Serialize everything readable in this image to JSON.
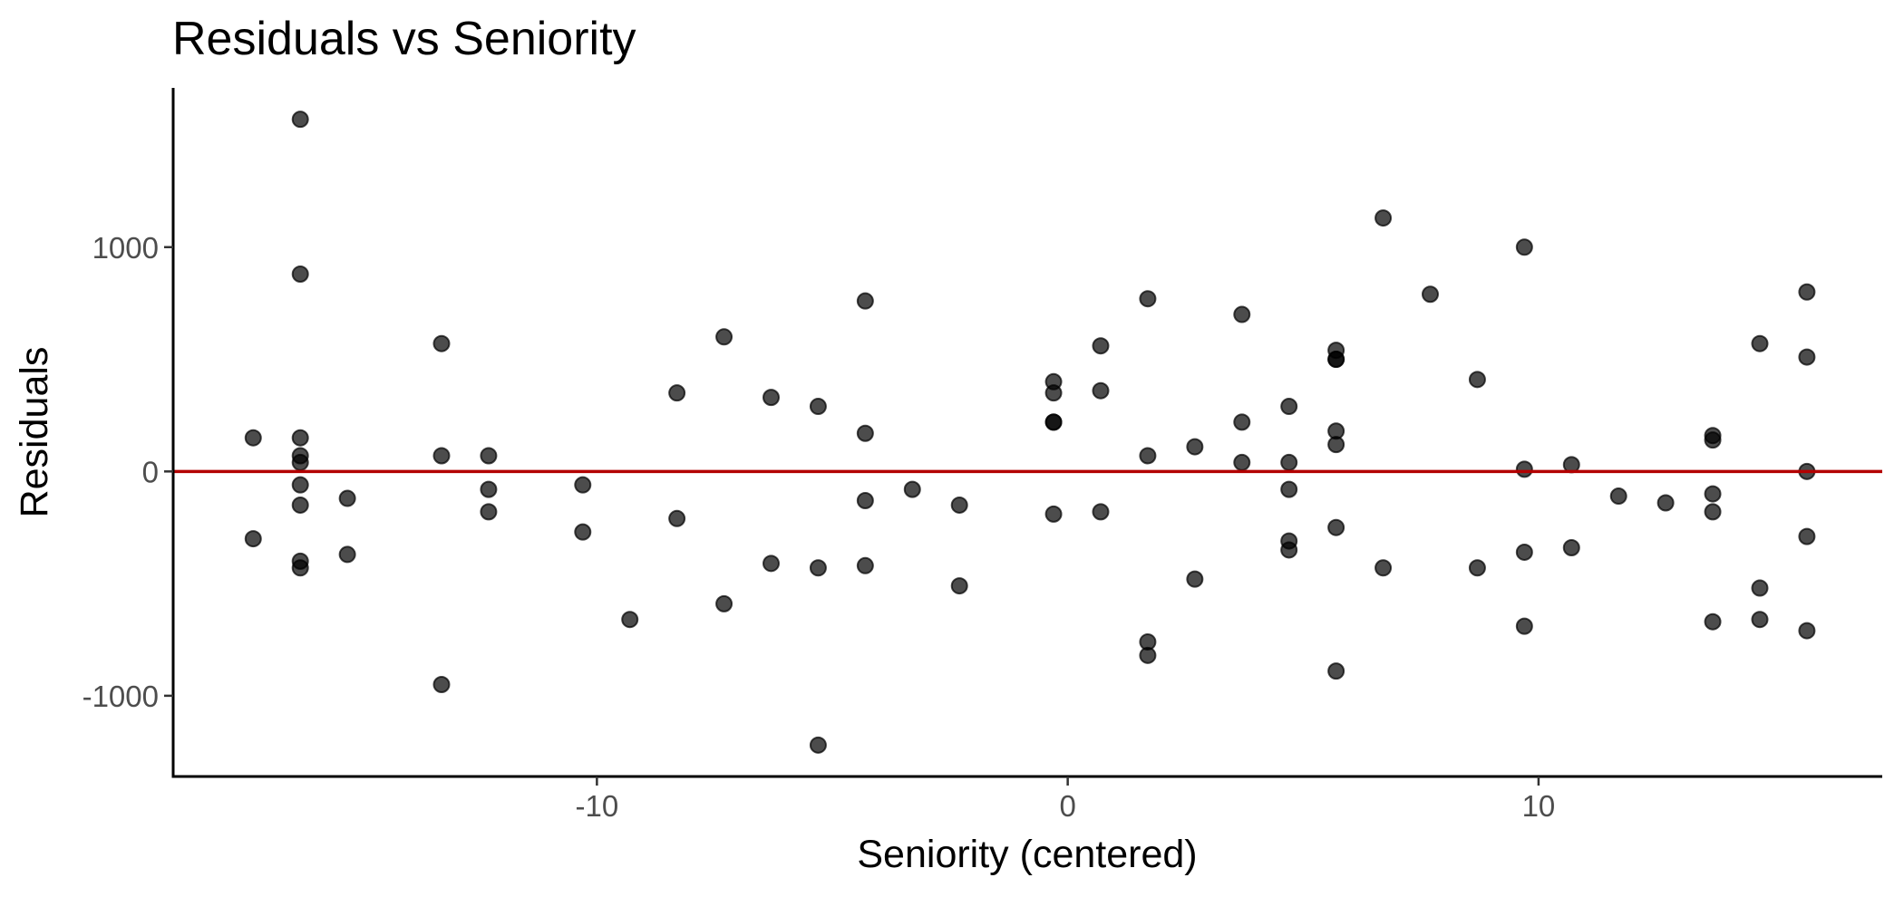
{
  "chart_data": {
    "type": "scatter",
    "title": "Residuals vs Seniority",
    "xlabel": "Seniority (centered)",
    "ylabel": "Residuals",
    "xlim": [
      -19,
      17.3
    ],
    "ylim": [
      -1360,
      1710
    ],
    "x_ticks": [
      -10,
      0,
      10
    ],
    "x_tick_labels": [
      "-10",
      "0",
      "10"
    ],
    "y_ticks": [
      -1000,
      0,
      1000
    ],
    "y_tick_labels": [
      "-1000",
      "0",
      "1000"
    ],
    "grid": false,
    "legend": "none",
    "point_color": "#000000",
    "point_opacity": 0.7,
    "reference_line": {
      "y": 0,
      "color": "#b30000"
    },
    "points": [
      {
        "x": -17.3,
        "y": 150
      },
      {
        "x": -17.3,
        "y": -300
      },
      {
        "x": -16.3,
        "y": 1570
      },
      {
        "x": -16.3,
        "y": 880
      },
      {
        "x": -16.3,
        "y": 150
      },
      {
        "x": -16.3,
        "y": 70
      },
      {
        "x": -16.3,
        "y": 40
      },
      {
        "x": -16.3,
        "y": -60
      },
      {
        "x": -16.3,
        "y": -150
      },
      {
        "x": -16.3,
        "y": -400
      },
      {
        "x": -16.3,
        "y": -430
      },
      {
        "x": -15.3,
        "y": -120
      },
      {
        "x": -15.3,
        "y": -370
      },
      {
        "x": -13.3,
        "y": 570
      },
      {
        "x": -13.3,
        "y": 70
      },
      {
        "x": -13.3,
        "y": -950
      },
      {
        "x": -12.3,
        "y": 70
      },
      {
        "x": -12.3,
        "y": -80
      },
      {
        "x": -12.3,
        "y": -180
      },
      {
        "x": -10.3,
        "y": -60
      },
      {
        "x": -10.3,
        "y": -270
      },
      {
        "x": -9.3,
        "y": -660
      },
      {
        "x": -8.3,
        "y": 350
      },
      {
        "x": -8.3,
        "y": -210
      },
      {
        "x": -7.3,
        "y": 600
      },
      {
        "x": -7.3,
        "y": -590
      },
      {
        "x": -6.3,
        "y": 330
      },
      {
        "x": -6.3,
        "y": -410
      },
      {
        "x": -5.3,
        "y": 290
      },
      {
        "x": -5.3,
        "y": -430
      },
      {
        "x": -5.3,
        "y": -1220
      },
      {
        "x": -4.3,
        "y": 760
      },
      {
        "x": -4.3,
        "y": 170
      },
      {
        "x": -4.3,
        "y": -130
      },
      {
        "x": -4.3,
        "y": -420
      },
      {
        "x": -3.3,
        "y": -80
      },
      {
        "x": -2.3,
        "y": -150
      },
      {
        "x": -2.3,
        "y": -510
      },
      {
        "x": -0.3,
        "y": 400
      },
      {
        "x": -0.3,
        "y": 350
      },
      {
        "x": -0.3,
        "y": 220
      },
      {
        "x": -0.3,
        "y": 220
      },
      {
        "x": -0.3,
        "y": -190
      },
      {
        "x": 0.7,
        "y": 560
      },
      {
        "x": 0.7,
        "y": 360
      },
      {
        "x": 0.7,
        "y": -180
      },
      {
        "x": 1.7,
        "y": 770
      },
      {
        "x": 1.7,
        "y": 70
      },
      {
        "x": 1.7,
        "y": -760
      },
      {
        "x": 1.7,
        "y": -820
      },
      {
        "x": 2.7,
        "y": 110
      },
      {
        "x": 2.7,
        "y": -480
      },
      {
        "x": 3.7,
        "y": 700
      },
      {
        "x": 3.7,
        "y": 220
      },
      {
        "x": 3.7,
        "y": 40
      },
      {
        "x": 4.7,
        "y": 290
      },
      {
        "x": 4.7,
        "y": 40
      },
      {
        "x": 4.7,
        "y": -80
      },
      {
        "x": 4.7,
        "y": -310
      },
      {
        "x": 4.7,
        "y": -350
      },
      {
        "x": 5.7,
        "y": 540
      },
      {
        "x": 5.7,
        "y": 500
      },
      {
        "x": 5.7,
        "y": 500
      },
      {
        "x": 5.7,
        "y": 180
      },
      {
        "x": 5.7,
        "y": 120
      },
      {
        "x": 5.7,
        "y": -250
      },
      {
        "x": 5.7,
        "y": -890
      },
      {
        "x": 6.7,
        "y": 1130
      },
      {
        "x": 6.7,
        "y": -430
      },
      {
        "x": 7.7,
        "y": 790
      },
      {
        "x": 8.7,
        "y": 410
      },
      {
        "x": 8.7,
        "y": -430
      },
      {
        "x": 9.7,
        "y": 1000
      },
      {
        "x": 9.7,
        "y": 10
      },
      {
        "x": 9.7,
        "y": -360
      },
      {
        "x": 9.7,
        "y": -690
      },
      {
        "x": 10.7,
        "y": 30
      },
      {
        "x": 10.7,
        "y": -340
      },
      {
        "x": 11.7,
        "y": -110
      },
      {
        "x": 12.7,
        "y": -140
      },
      {
        "x": 13.7,
        "y": 160
      },
      {
        "x": 13.7,
        "y": 140
      },
      {
        "x": 13.7,
        "y": -100
      },
      {
        "x": 13.7,
        "y": -180
      },
      {
        "x": 13.7,
        "y": -670
      },
      {
        "x": 14.7,
        "y": 570
      },
      {
        "x": 14.7,
        "y": -520
      },
      {
        "x": 14.7,
        "y": -660
      },
      {
        "x": 15.7,
        "y": 800
      },
      {
        "x": 15.7,
        "y": 510
      },
      {
        "x": 15.7,
        "y": 0
      },
      {
        "x": 15.7,
        "y": -290
      },
      {
        "x": 15.7,
        "y": -710
      }
    ]
  }
}
